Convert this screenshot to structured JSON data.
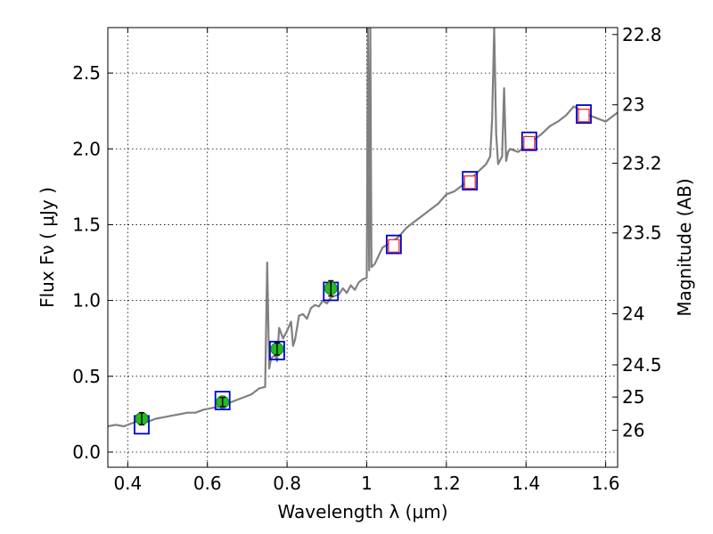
{
  "chart_data": {
    "type": "line",
    "xlabel": "Wavelength  λ (μm)",
    "ylabel": "Flux  Fν  ( μJy )",
    "y2label": "Magnitude (AB)",
    "xlim": [
      0.35,
      1.63
    ],
    "ylim": [
      -0.1,
      2.8
    ],
    "grid": true,
    "x_ticks": [
      0.4,
      0.6,
      0.8,
      1.0,
      1.2,
      1.4,
      1.6
    ],
    "x_tick_labels": [
      "0.4",
      "0.6",
      "0.8",
      "1",
      "1.2",
      "1.4",
      "1.6"
    ],
    "y_ticks": [
      0.0,
      0.5,
      1.0,
      1.5,
      2.0,
      2.5
    ],
    "y_tick_labels": [
      "0.0",
      "0.5",
      "1.0",
      "1.5",
      "2.0",
      "2.5"
    ],
    "mag_ticks": [
      22.8,
      23,
      23.2,
      23.5,
      24,
      24.5,
      25,
      26
    ],
    "mag_tick_labels": [
      "22.8",
      "23",
      "23.2",
      "23.5",
      "24",
      "24.5",
      "25",
      "26"
    ],
    "colors": {
      "spectrum": "#808080",
      "model_box": "#0000cc",
      "observed": "#22bb22",
      "upper_limit_box": "#dd2222",
      "grid": "#000000"
    },
    "series": [
      {
        "kind": "spectrum",
        "x": [
          0.35,
          0.37,
          0.39,
          0.41,
          0.43,
          0.45,
          0.47,
          0.49,
          0.51,
          0.53,
          0.55,
          0.57,
          0.59,
          0.61,
          0.63,
          0.65,
          0.67,
          0.69,
          0.71,
          0.73,
          0.745,
          0.75,
          0.755,
          0.76,
          0.77,
          0.775,
          0.78,
          0.79,
          0.8,
          0.81,
          0.815,
          0.82,
          0.83,
          0.84,
          0.85,
          0.86,
          0.87,
          0.88,
          0.89,
          0.9,
          0.91,
          0.92,
          0.93,
          0.94,
          0.95,
          0.96,
          0.97,
          0.98,
          0.99,
          1.0,
          1.003,
          1.006,
          1.009,
          1.012,
          1.02,
          1.04,
          1.06,
          1.08,
          1.1,
          1.12,
          1.14,
          1.16,
          1.18,
          1.2,
          1.22,
          1.24,
          1.26,
          1.28,
          1.3,
          1.31,
          1.315,
          1.32,
          1.325,
          1.33,
          1.34,
          1.345,
          1.35,
          1.355,
          1.36,
          1.38,
          1.4,
          1.42,
          1.44,
          1.46,
          1.48,
          1.5,
          1.52,
          1.54,
          1.56,
          1.58,
          1.6,
          1.63
        ],
        "y": [
          0.17,
          0.18,
          0.17,
          0.19,
          0.21,
          0.2,
          0.22,
          0.23,
          0.24,
          0.25,
          0.26,
          0.26,
          0.28,
          0.29,
          0.3,
          0.32,
          0.34,
          0.36,
          0.38,
          0.42,
          0.43,
          1.25,
          0.55,
          0.62,
          0.64,
          0.6,
          0.82,
          0.75,
          0.8,
          0.86,
          0.7,
          0.74,
          0.9,
          0.91,
          0.88,
          0.95,
          0.97,
          0.96,
          1.0,
          0.98,
          1.02,
          1.03,
          1.04,
          1.08,
          1.05,
          1.1,
          1.07,
          1.12,
          1.14,
          1.15,
          2.8,
          1.2,
          2.8,
          1.22,
          1.24,
          1.35,
          1.38,
          1.42,
          1.48,
          1.52,
          1.56,
          1.6,
          1.64,
          1.7,
          1.72,
          1.76,
          1.8,
          1.85,
          1.9,
          1.95,
          2.2,
          2.8,
          2.1,
          1.9,
          1.95,
          2.4,
          1.92,
          1.98,
          2.0,
          1.98,
          2.02,
          2.06,
          2.1,
          2.15,
          2.18,
          2.22,
          2.28,
          2.25,
          2.22,
          2.2,
          2.18,
          2.24
        ]
      },
      {
        "kind": "model_photometry",
        "x": [
          0.435,
          0.638,
          0.775,
          0.91,
          1.068,
          1.259,
          1.408,
          1.545
        ],
        "y": [
          0.18,
          0.34,
          0.67,
          1.06,
          1.37,
          1.79,
          2.05,
          2.23
        ]
      },
      {
        "kind": "observed_photometry",
        "x": [
          0.435,
          0.638,
          0.775,
          0.91
        ],
        "y": [
          0.22,
          0.33,
          0.68,
          1.08
        ],
        "err": [
          0.04,
          0.03,
          0.04,
          0.05
        ]
      },
      {
        "kind": "upper_limits",
        "x": [
          1.068,
          1.259,
          1.408,
          1.545
        ],
        "y": [
          1.36,
          1.78,
          2.04,
          2.22
        ]
      }
    ]
  }
}
